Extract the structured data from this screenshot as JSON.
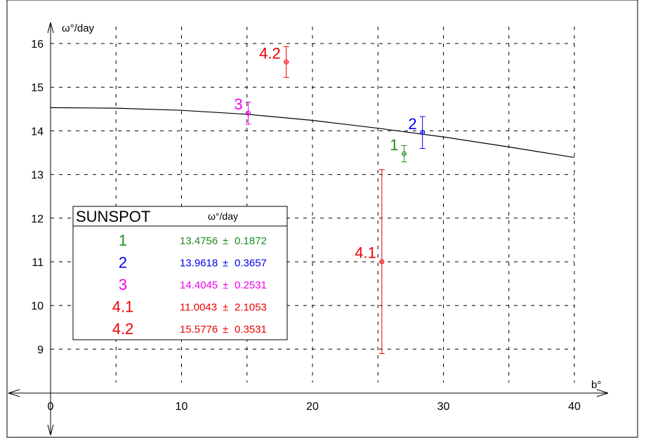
{
  "chart_data": {
    "type": "scatter",
    "xlabel": "b°",
    "ylabel": "ω°/day",
    "xlim": [
      0,
      40
    ],
    "ylim": [
      8.5,
      16.3
    ],
    "x_ticks": [
      "0",
      "10",
      "20",
      "30",
      "40"
    ],
    "y_ticks": [
      "9",
      "10",
      "11",
      "12",
      "13",
      "14",
      "15",
      "16"
    ],
    "grid": true,
    "legend_placement": "lower-left",
    "points": [
      {
        "label": "1",
        "x": 27.0,
        "y": 13.4756,
        "err": 0.1872,
        "color": "#228b22"
      },
      {
        "label": "2",
        "x": 28.4,
        "y": 13.9618,
        "err": 0.3657,
        "color": "#0000ee"
      },
      {
        "label": "3",
        "x": 15.1,
        "y": 14.4045,
        "err": 0.2531,
        "color": "#ee00ee"
      },
      {
        "label": "4.1",
        "x": 25.3,
        "y": 11.0043,
        "err": 2.1053,
        "color": "#ee0000"
      },
      {
        "label": "4.2",
        "x": 18.0,
        "y": 15.5776,
        "err": 0.3531,
        "color": "#ee0000"
      }
    ],
    "fit_curve": {
      "x": [
        0,
        5,
        10,
        15,
        20,
        25,
        30,
        35,
        40
      ],
      "y": [
        14.53,
        14.52,
        14.47,
        14.38,
        14.24,
        14.06,
        13.86,
        13.63,
        13.39
      ]
    },
    "legend": {
      "title_left": "SUNSPOT",
      "title_right": "ω°/day",
      "rows": [
        {
          "id": "1",
          "value": "13.4756",
          "pm": "±",
          "err": "0.1872",
          "color": "#228b22"
        },
        {
          "id": "2",
          "value": "13.9618",
          "pm": "±",
          "err": "0.3657",
          "color": "#0000ee"
        },
        {
          "id": "3",
          "value": "14.4045",
          "pm": "±",
          "err": "0.2531",
          "color": "#ee00ee"
        },
        {
          "id": "4.1",
          "value": "11.0043",
          "pm": "±",
          "err": "2.1053",
          "color": "#ee0000"
        },
        {
          "id": "4.2",
          "value": "15.5776",
          "pm": "±",
          "err": "0.3531",
          "color": "#ee0000"
        }
      ]
    }
  }
}
